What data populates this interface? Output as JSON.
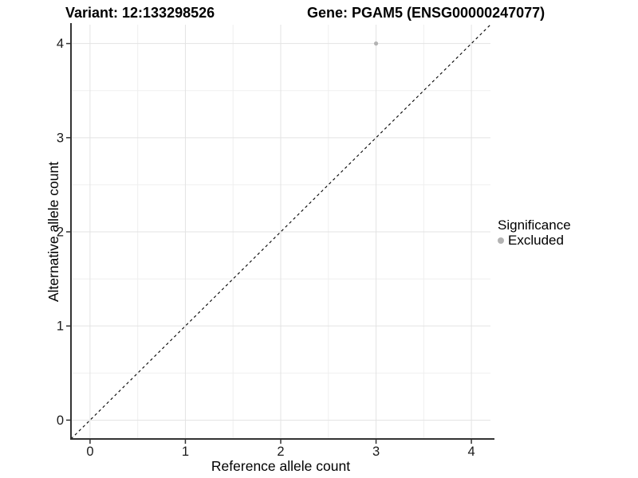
{
  "header": {
    "variant_title": "Variant: 12:133298526",
    "gene_title": "Gene: PGAM5 (ENSG00000247077)"
  },
  "chart_data": {
    "type": "scatter",
    "title_left": "Variant: 12:133298526",
    "title_right": "Gene: PGAM5 (ENSG00000247077)",
    "xlabel": "Reference allele count",
    "ylabel": "Alternative allele count",
    "xlim": [
      -0.2,
      4.2
    ],
    "ylim": [
      -0.2,
      4.2
    ],
    "xticks": [
      0,
      1,
      2,
      3,
      4
    ],
    "yticks": [
      0,
      1,
      2,
      3,
      4
    ],
    "xticks_minor": [
      0.5,
      1.5,
      2.5,
      3.5
    ],
    "yticks_minor": [
      0.5,
      1.5,
      2.5,
      3.5
    ],
    "grid": true,
    "points": [
      {
        "x": 3,
        "y": 4,
        "series": "Excluded"
      }
    ],
    "reference_line": {
      "slope": 1,
      "intercept": 0,
      "style": "dashed",
      "color": "#000000"
    },
    "legend": {
      "position": "right",
      "title": "Significance",
      "items": [
        {
          "label": "Excluded",
          "color": "#b3b3b3"
        }
      ]
    }
  },
  "colors": {
    "background": "#ffffff",
    "grid_major": "#e3e3e3",
    "grid_minor": "#efefef",
    "axis_line": "#333333",
    "tick_mark": "#333333",
    "tick_label": "#1a1a1a",
    "point": "#b3b3b3"
  }
}
